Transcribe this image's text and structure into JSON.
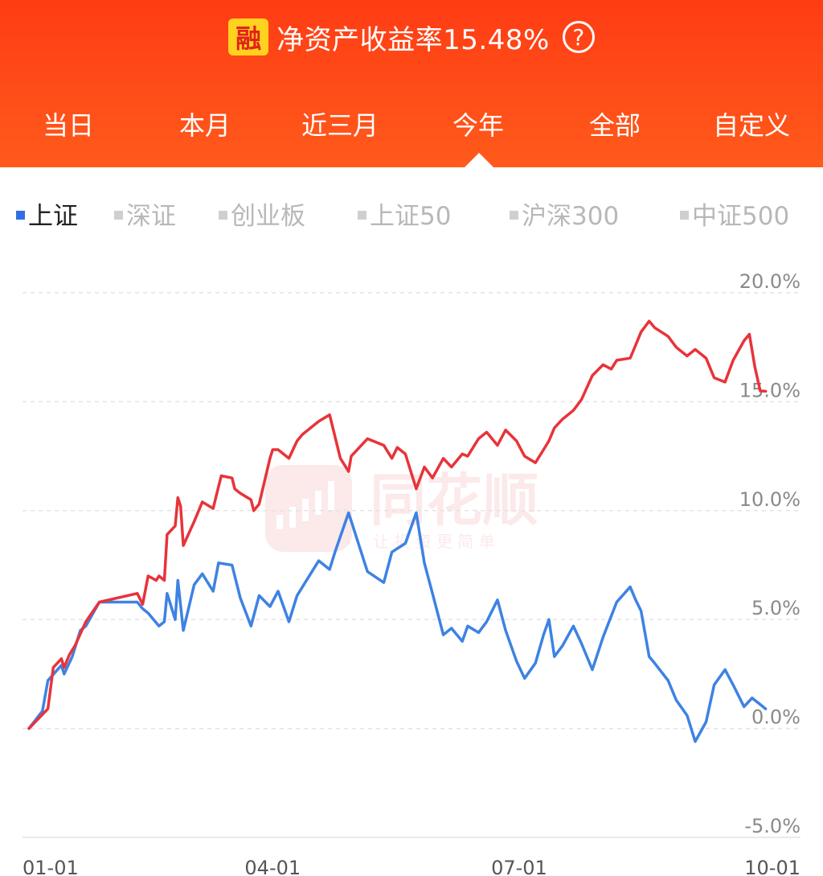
{
  "header": {
    "badge_label": "融",
    "title": "净资产收益率15.48%",
    "help_icon": "?"
  },
  "tabs": [
    {
      "label": "当日"
    },
    {
      "label": "本月"
    },
    {
      "label": "近三月"
    },
    {
      "label": "今年",
      "active": true
    },
    {
      "label": "全部"
    },
    {
      "label": "自定义"
    }
  ],
  "indices": [
    {
      "label": "上证",
      "active": true
    },
    {
      "label": "深证"
    },
    {
      "label": "创业板"
    },
    {
      "label": "上证50"
    },
    {
      "label": "沪深300"
    },
    {
      "label": "中证500"
    }
  ],
  "watermark": {
    "brand": "同花顺",
    "slogan": "让 投 资 更 简 单"
  },
  "colors": {
    "header": "#ff4a18",
    "portfolio_line": "#e8333a",
    "index_line": "#3e82e3"
  },
  "chart_data": {
    "type": "line",
    "x_ticks": [
      "01-01",
      "04-01",
      "07-01",
      "10-01"
    ],
    "y_ticks": [
      "20.0%",
      "15.0%",
      "10.0%",
      "5.0%",
      "0.0%",
      "-5.0%"
    ],
    "ylim": [
      -5.0,
      20.0
    ],
    "grid": true,
    "series": [
      {
        "color": "#e8333a",
        "points": [
          [
            "01-01",
            0.0
          ],
          [
            "01-08",
            0.9
          ],
          [
            "01-10",
            2.8
          ],
          [
            "01-13",
            3.2
          ],
          [
            "01-14",
            2.8
          ],
          [
            "01-16",
            3.4
          ],
          [
            "01-18",
            3.8
          ],
          [
            "01-22",
            4.9
          ],
          [
            "01-27",
            5.8
          ],
          [
            "02-10",
            6.2
          ],
          [
            "02-12",
            5.7
          ],
          [
            "02-14",
            7.0
          ],
          [
            "02-17",
            6.8
          ],
          [
            "02-18",
            7.0
          ],
          [
            "02-20",
            6.8
          ],
          [
            "02-21",
            8.9
          ],
          [
            "02-24",
            9.3
          ],
          [
            "02-25",
            10.6
          ],
          [
            "02-26",
            10.2
          ],
          [
            "02-27",
            8.4
          ],
          [
            "03-03",
            9.5
          ],
          [
            "03-06",
            10.4
          ],
          [
            "03-10",
            10.1
          ],
          [
            "03-12",
            11.1
          ],
          [
            "03-13",
            11.6
          ],
          [
            "03-17",
            11.5
          ],
          [
            "03-18",
            11.0
          ],
          [
            "03-20",
            10.8
          ],
          [
            "03-24",
            10.5
          ],
          [
            "03-25",
            10.0
          ],
          [
            "03-27",
            10.3
          ],
          [
            "03-31",
            12.4
          ],
          [
            "04-01",
            12.8
          ],
          [
            "04-03",
            12.8
          ],
          [
            "04-07",
            12.4
          ],
          [
            "04-10",
            13.2
          ],
          [
            "04-12",
            13.5
          ],
          [
            "04-15",
            13.8
          ],
          [
            "04-18",
            14.1
          ],
          [
            "04-22",
            14.4
          ],
          [
            "04-26",
            12.4
          ],
          [
            "04-29",
            11.8
          ],
          [
            "04-30",
            12.5
          ],
          [
            "05-06",
            13.3
          ],
          [
            "05-12",
            13.0
          ],
          [
            "05-15",
            12.4
          ],
          [
            "05-17",
            12.9
          ],
          [
            "05-20",
            12.6
          ],
          [
            "05-24",
            11.0
          ],
          [
            "05-27",
            12.0
          ],
          [
            "05-30",
            11.5
          ],
          [
            "06-03",
            12.4
          ],
          [
            "06-06",
            12.0
          ],
          [
            "06-10",
            12.6
          ],
          [
            "06-12",
            12.5
          ],
          [
            "06-16",
            13.3
          ],
          [
            "06-19",
            13.6
          ],
          [
            "06-23",
            13.0
          ],
          [
            "06-26",
            13.7
          ],
          [
            "06-30",
            13.2
          ],
          [
            "07-03",
            12.5
          ],
          [
            "07-07",
            12.2
          ],
          [
            "07-10",
            12.8
          ],
          [
            "07-12",
            13.2
          ],
          [
            "07-14",
            13.8
          ],
          [
            "07-17",
            14.2
          ],
          [
            "07-21",
            14.6
          ],
          [
            "07-24",
            15.1
          ],
          [
            "07-28",
            16.2
          ],
          [
            "08-01",
            16.7
          ],
          [
            "08-04",
            16.5
          ],
          [
            "08-06",
            16.9
          ],
          [
            "08-11",
            17.0
          ],
          [
            "08-13",
            17.6
          ],
          [
            "08-15",
            18.2
          ],
          [
            "08-18",
            18.7
          ],
          [
            "08-20",
            18.4
          ],
          [
            "08-25",
            18.0
          ],
          [
            "08-28",
            17.5
          ],
          [
            "09-01",
            17.1
          ],
          [
            "09-04",
            17.4
          ],
          [
            "09-08",
            17.0
          ],
          [
            "09-11",
            16.1
          ],
          [
            "09-15",
            15.9
          ],
          [
            "09-18",
            16.9
          ],
          [
            "09-22",
            17.8
          ],
          [
            "09-24",
            18.1
          ],
          [
            "09-26",
            16.6
          ],
          [
            "09-28",
            15.5
          ],
          [
            "09-30",
            15.48
          ]
        ]
      },
      {
        "name": "上证",
        "color": "#3e82e3",
        "points": [
          [
            "01-01",
            0.0
          ],
          [
            "01-06",
            0.8
          ],
          [
            "01-08",
            2.2
          ],
          [
            "01-13",
            2.9
          ],
          [
            "01-14",
            2.5
          ],
          [
            "01-17",
            3.3
          ],
          [
            "01-20",
            4.5
          ],
          [
            "01-22",
            4.7
          ],
          [
            "01-27",
            5.8
          ],
          [
            "02-10",
            5.8
          ],
          [
            "02-12",
            5.5
          ],
          [
            "02-14",
            5.3
          ],
          [
            "02-18",
            4.7
          ],
          [
            "02-20",
            4.9
          ],
          [
            "02-21",
            6.2
          ],
          [
            "02-24",
            5.0
          ],
          [
            "02-25",
            6.8
          ],
          [
            "02-27",
            4.5
          ],
          [
            "03-03",
            6.6
          ],
          [
            "03-06",
            7.1
          ],
          [
            "03-10",
            6.3
          ],
          [
            "03-12",
            7.6
          ],
          [
            "03-17",
            7.5
          ],
          [
            "03-20",
            6.0
          ],
          [
            "03-24",
            4.7
          ],
          [
            "03-27",
            6.1
          ],
          [
            "03-31",
            5.6
          ],
          [
            "04-03",
            6.3
          ],
          [
            "04-07",
            4.9
          ],
          [
            "04-10",
            6.1
          ],
          [
            "04-14",
            6.9
          ],
          [
            "04-18",
            7.7
          ],
          [
            "04-22",
            7.3
          ],
          [
            "04-24",
            8.1
          ],
          [
            "04-29",
            9.9
          ],
          [
            "05-06",
            7.2
          ],
          [
            "05-12",
            6.7
          ],
          [
            "05-15",
            8.1
          ],
          [
            "05-20",
            8.5
          ],
          [
            "05-24",
            9.9
          ],
          [
            "05-27",
            7.6
          ],
          [
            "05-30",
            6.2
          ],
          [
            "06-03",
            4.3
          ],
          [
            "06-06",
            4.6
          ],
          [
            "06-10",
            4.0
          ],
          [
            "06-12",
            4.7
          ],
          [
            "06-16",
            4.4
          ],
          [
            "06-19",
            4.9
          ],
          [
            "06-23",
            5.9
          ],
          [
            "06-26",
            4.5
          ],
          [
            "06-30",
            3.1
          ],
          [
            "07-03",
            2.3
          ],
          [
            "07-07",
            3.0
          ],
          [
            "07-10",
            4.3
          ],
          [
            "07-12",
            5.0
          ],
          [
            "07-14",
            3.3
          ],
          [
            "07-17",
            3.8
          ],
          [
            "07-21",
            4.7
          ],
          [
            "07-24",
            3.9
          ],
          [
            "07-28",
            2.7
          ],
          [
            "08-01",
            4.2
          ],
          [
            "08-06",
            5.8
          ],
          [
            "08-11",
            6.5
          ],
          [
            "08-13",
            5.9
          ],
          [
            "08-15",
            5.4
          ],
          [
            "08-18",
            3.3
          ],
          [
            "08-20",
            3.0
          ],
          [
            "08-25",
            2.2
          ],
          [
            "08-28",
            1.3
          ],
          [
            "09-01",
            0.6
          ],
          [
            "09-04",
            -0.6
          ],
          [
            "09-08",
            0.3
          ],
          [
            "09-11",
            2.0
          ],
          [
            "09-15",
            2.7
          ],
          [
            "09-18",
            2.0
          ],
          [
            "09-22",
            1.0
          ],
          [
            "09-25",
            1.4
          ],
          [
            "09-28",
            1.1
          ],
          [
            "09-30",
            0.9
          ]
        ]
      }
    ]
  }
}
